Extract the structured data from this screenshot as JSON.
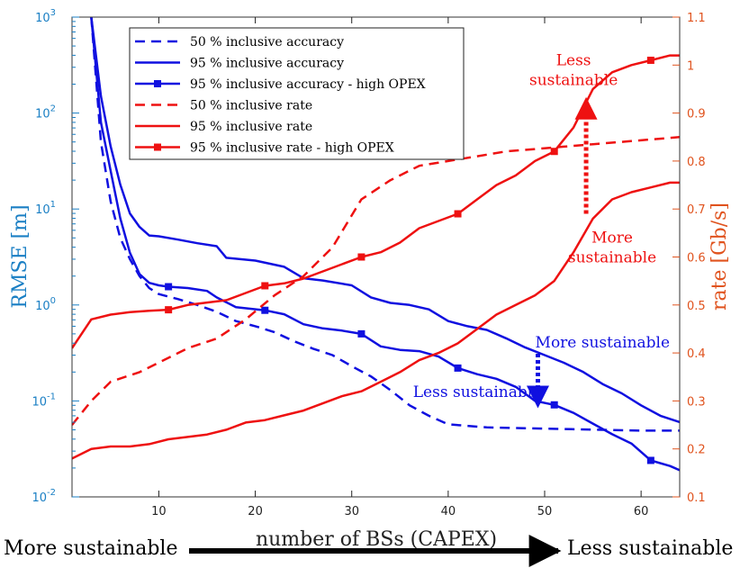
{
  "colors": {
    "left_axis": "#1a7fc4",
    "right_axis": "#e0531e",
    "blue": "#1010e0",
    "red": "#ee1111",
    "black": "#000000"
  },
  "captions": {
    "left": "More sustainable",
    "right": "Less sustainable"
  },
  "chart_data": {
    "type": "line",
    "xlabel": "number of BSs (CAPEX)",
    "ylabel_left": "RMSE [m]",
    "ylabel_right": "rate [Gb/s]",
    "xlim": [
      1,
      64
    ],
    "ylim_left": [
      0.01,
      1000
    ],
    "ylim_right": [
      0.1,
      1.1
    ],
    "yscale_left": "log",
    "x_ticks": [
      "10",
      "20",
      "30",
      "40",
      "50",
      "60"
    ],
    "y_ticks_left_base": "10",
    "y_ticks_left_exponents": [
      "-2",
      "-1",
      "0",
      "1",
      "2",
      "3"
    ],
    "y_ticks_right": [
      "0.1",
      "0.2",
      "0.3",
      "0.4",
      "0.5",
      "0.6",
      "0.7",
      "0.8",
      "0.9",
      "1",
      "1.1"
    ],
    "legend": {
      "location": "top-left",
      "entries": [
        "50 % inclusive accuracy",
        "95 % inclusive accuracy",
        "95 % inclusive accuracy - high OPEX",
        "50 % inclusive rate",
        "95 % inclusive rate",
        "95 % inclusive rate - high OPEX"
      ]
    },
    "series": [
      {
        "name": "50 % inclusive accuracy",
        "axis": "left",
        "color": "blue",
        "style": "dashed",
        "marker": false,
        "x": [
          3,
          4,
          5,
          6,
          7,
          8,
          9,
          10,
          12,
          14,
          16,
          18,
          20,
          22,
          24,
          26,
          28,
          30,
          32,
          34,
          36,
          38,
          40,
          44,
          48,
          52,
          56,
          60,
          64
        ],
        "y": [
          1000,
          50,
          12,
          5,
          3,
          2,
          1.5,
          1.3,
          1.15,
          1.0,
          0.85,
          0.68,
          0.6,
          0.52,
          0.42,
          0.35,
          0.3,
          0.23,
          0.18,
          0.13,
          0.09,
          0.07,
          0.057,
          0.053,
          0.052,
          0.051,
          0.05,
          0.049,
          0.049
        ]
      },
      {
        "name": "95 % inclusive accuracy",
        "axis": "left",
        "color": "blue",
        "style": "solid",
        "marker": false,
        "x": [
          3,
          4,
          5,
          6,
          7,
          8,
          9,
          10,
          12,
          14,
          16,
          17,
          20,
          23,
          25,
          27,
          30,
          32,
          34,
          36,
          38,
          40,
          42,
          44,
          46,
          48,
          50,
          52,
          54,
          56,
          58,
          60,
          62,
          64
        ],
        "y": [
          1000,
          150,
          45,
          18,
          9,
          6.5,
          5.3,
          5.2,
          4.8,
          4.4,
          4.1,
          3.1,
          2.9,
          2.5,
          1.9,
          1.8,
          1.6,
          1.2,
          1.05,
          1.0,
          0.9,
          0.68,
          0.6,
          0.55,
          0.45,
          0.36,
          0.3,
          0.25,
          0.2,
          0.15,
          0.12,
          0.09,
          0.07,
          0.06
        ]
      },
      {
        "name": "95 % inclusive accuracy - high OPEX",
        "axis": "left",
        "color": "blue",
        "style": "solid",
        "marker": true,
        "marker_x": [
          11,
          21,
          31,
          41,
          51,
          61
        ],
        "x": [
          3,
          4,
          5,
          6,
          7,
          8,
          9,
          10,
          11,
          13,
          15,
          16,
          18,
          21,
          23,
          25,
          27,
          29,
          31,
          33,
          35,
          37,
          39,
          41,
          43,
          45,
          47,
          49,
          51,
          53,
          55,
          57,
          59,
          61,
          63,
          64
        ],
        "y": [
          1000,
          80,
          25,
          8,
          3.5,
          2.1,
          1.7,
          1.6,
          1.55,
          1.5,
          1.4,
          1.2,
          0.95,
          0.88,
          0.8,
          0.63,
          0.57,
          0.54,
          0.5,
          0.37,
          0.34,
          0.33,
          0.29,
          0.22,
          0.19,
          0.17,
          0.14,
          0.1,
          0.091,
          0.075,
          0.058,
          0.045,
          0.036,
          0.024,
          0.021,
          0.019
        ]
      },
      {
        "name": "50 % inclusive rate",
        "axis": "right",
        "color": "red",
        "style": "dashed",
        "marker": false,
        "x": [
          1,
          3,
          5,
          8,
          10,
          13,
          16,
          19,
          22,
          25,
          28,
          31,
          34,
          37,
          40,
          43,
          46,
          49,
          52,
          55,
          58,
          61,
          64
        ],
        "y": [
          0.25,
          0.3,
          0.34,
          0.36,
          0.38,
          0.41,
          0.43,
          0.47,
          0.52,
          0.56,
          0.62,
          0.72,
          0.76,
          0.79,
          0.8,
          0.81,
          0.82,
          0.825,
          0.83,
          0.835,
          0.84,
          0.845,
          0.85
        ]
      },
      {
        "name": "95 % inclusive rate",
        "axis": "right",
        "color": "red",
        "style": "solid",
        "marker": false,
        "x": [
          1,
          3,
          5,
          7,
          9,
          11,
          13,
          15,
          17,
          19,
          21,
          23,
          25,
          27,
          29,
          31,
          33,
          35,
          37,
          39,
          41,
          43,
          45,
          47,
          49,
          51,
          53,
          55,
          57,
          59,
          61,
          63,
          64
        ],
        "y": [
          0.18,
          0.2,
          0.205,
          0.205,
          0.21,
          0.22,
          0.225,
          0.23,
          0.24,
          0.255,
          0.26,
          0.27,
          0.28,
          0.295,
          0.31,
          0.32,
          0.34,
          0.36,
          0.385,
          0.4,
          0.42,
          0.45,
          0.48,
          0.5,
          0.52,
          0.55,
          0.61,
          0.68,
          0.72,
          0.735,
          0.745,
          0.755,
          0.755
        ]
      },
      {
        "name": "95 % inclusive rate - high OPEX",
        "axis": "right",
        "color": "red",
        "style": "solid",
        "marker": true,
        "marker_x": [
          11,
          21,
          31,
          41,
          51,
          61
        ],
        "x": [
          1,
          3,
          5,
          7,
          9,
          11,
          13,
          15,
          17,
          19,
          21,
          23,
          25,
          27,
          29,
          31,
          33,
          35,
          37,
          39,
          41,
          43,
          45,
          47,
          49,
          51,
          53,
          55,
          57,
          59,
          61,
          63,
          64
        ],
        "y": [
          0.41,
          0.47,
          0.48,
          0.485,
          0.488,
          0.49,
          0.5,
          0.505,
          0.51,
          0.525,
          0.54,
          0.545,
          0.555,
          0.57,
          0.585,
          0.6,
          0.61,
          0.63,
          0.66,
          0.675,
          0.69,
          0.72,
          0.75,
          0.77,
          0.8,
          0.82,
          0.87,
          0.95,
          0.985,
          1.0,
          1.01,
          1.02,
          1.02
        ]
      }
    ],
    "annotations": [
      {
        "id": "red-top",
        "text_lines": [
          "Less",
          "sustainable"
        ],
        "color": "red",
        "x": 53,
        "y_right": 1.0
      },
      {
        "id": "red-bottom",
        "text_lines": [
          "More",
          "sustainable"
        ],
        "color": "red",
        "x": 57,
        "y_right": 0.63
      },
      {
        "id": "blue-top",
        "text_lines": [
          "More sustainable"
        ],
        "color": "blue",
        "x": 56,
        "y_left": 0.36
      },
      {
        "id": "blue-bottom",
        "text_lines": [
          "Less sustainable"
        ],
        "color": "blue",
        "x": 43,
        "y_left": 0.11
      }
    ],
    "arrows": [
      {
        "id": "red-arrow",
        "color": "red",
        "x": 54.3,
        "from_right": 0.69,
        "to_right": 0.91
      },
      {
        "id": "blue-arrow",
        "color": "blue",
        "x": 49.3,
        "from_left": 0.31,
        "to_left": 0.11
      }
    ]
  }
}
